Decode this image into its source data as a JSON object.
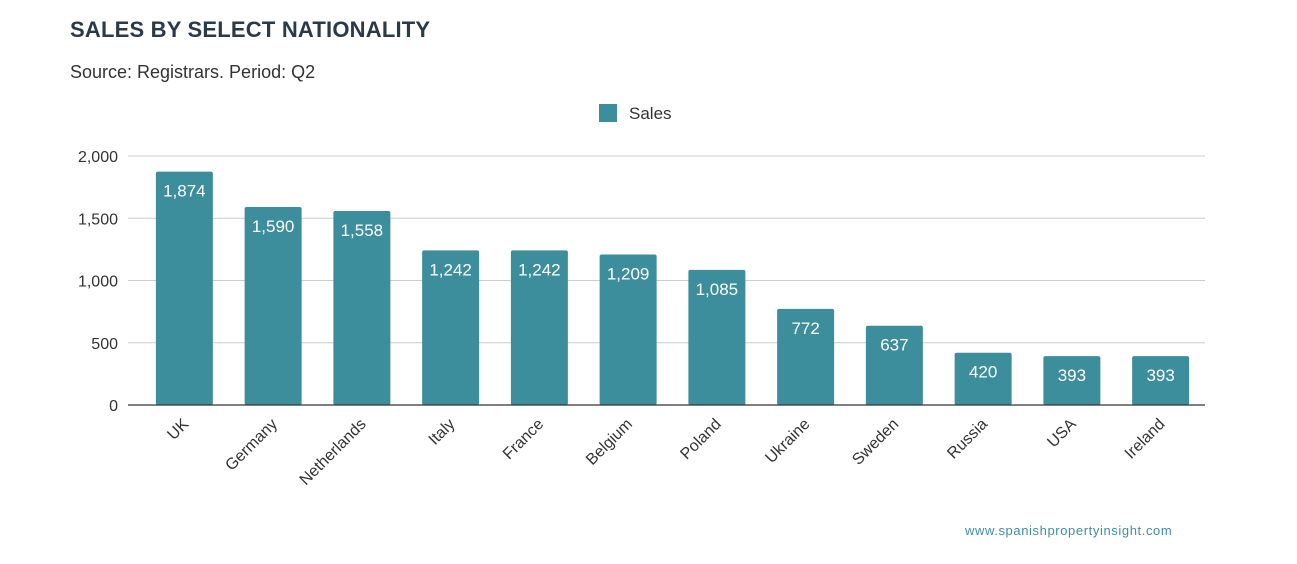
{
  "chart_data": {
    "type": "bar",
    "title": "SALES BY SELECT NATIONALITY",
    "subtitle": "Source: Registrars. Period: Q2",
    "xlabel": "",
    "ylabel": "",
    "ylim": [
      0,
      2000
    ],
    "yticks": [
      0,
      500,
      1000,
      1500,
      2000
    ],
    "ytick_labels": [
      "0",
      "500",
      "1,000",
      "1,500",
      "2,000"
    ],
    "grid": true,
    "legend_position": "top",
    "categories": [
      "UK",
      "Germany",
      "Netherlands",
      "Italy",
      "France",
      "Belgium",
      "Poland",
      "Ukraine",
      "Sweden",
      "Russia",
      "USA",
      "Ireland"
    ],
    "series": [
      {
        "name": "Sales",
        "color": "#3d8e9c",
        "values": [
          1874,
          1590,
          1558,
          1242,
          1242,
          1209,
          1085,
          772,
          637,
          420,
          393,
          393
        ],
        "labels": [
          "1,874",
          "1,590",
          "1,558",
          "1,242",
          "1,242",
          "1,209",
          "1,085",
          "772",
          "637",
          "420",
          "393",
          "393"
        ]
      }
    ]
  },
  "credit": "www.spanishpropertyinsight.com"
}
